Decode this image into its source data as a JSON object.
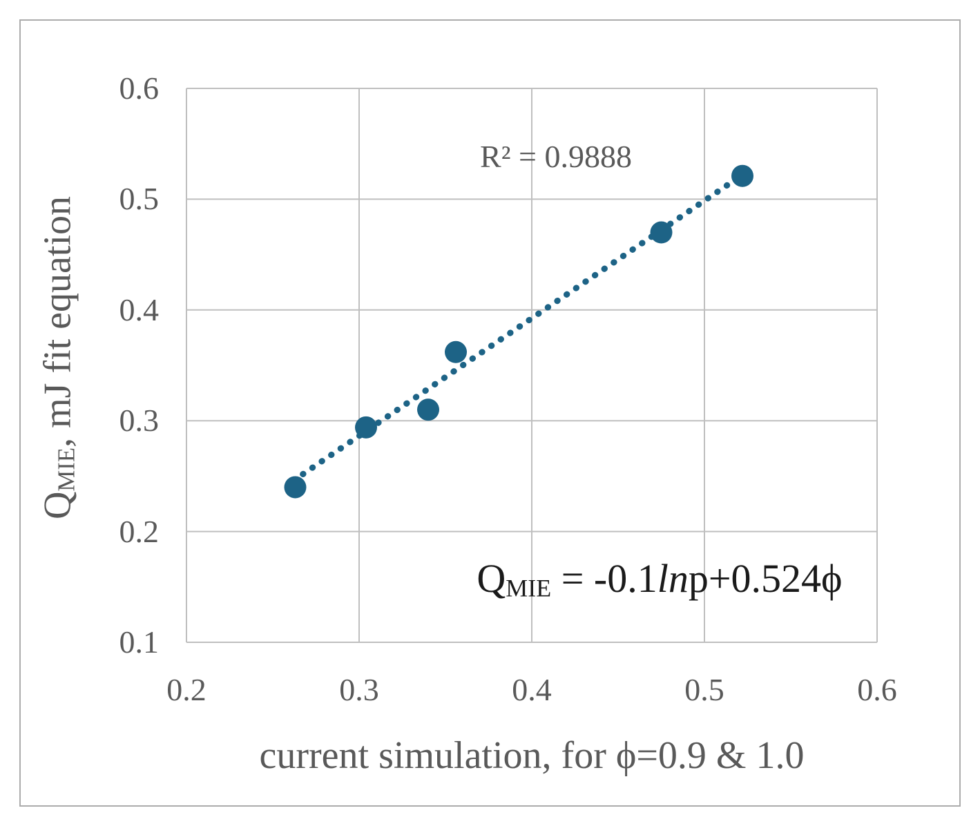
{
  "chart_data": {
    "type": "scatter",
    "title": "",
    "xlabel": "current simulation, for ϕ=0.9 & 1.0",
    "ylabel": "Q_MIE, mJ fit equation",
    "ylabel_parts": {
      "base": "Q",
      "sub": "MIE",
      "rest": ", mJ fit equation"
    },
    "r_squared_label": "R² = 0.9888",
    "equation_parts": {
      "base": "Q",
      "sub": "MIE",
      "mid": " = -0.1",
      "italic": "ln",
      "rest": "p+0.524ϕ"
    },
    "xlim": [
      0.2,
      0.6
    ],
    "ylim": [
      0.1,
      0.6
    ],
    "x_ticks": [
      0.2,
      0.3,
      0.4,
      0.5,
      0.6
    ],
    "y_ticks": [
      0.1,
      0.2,
      0.3,
      0.4,
      0.5,
      0.6
    ],
    "grid": true,
    "legend": "none",
    "points": [
      {
        "x": 0.263,
        "y": 0.24
      },
      {
        "x": 0.304,
        "y": 0.294
      },
      {
        "x": 0.34,
        "y": 0.31
      },
      {
        "x": 0.356,
        "y": 0.362
      },
      {
        "x": 0.475,
        "y": 0.47
      },
      {
        "x": 0.522,
        "y": 0.521
      }
    ],
    "trendline": {
      "style": "dotted",
      "x1": 0.262,
      "y1": 0.246,
      "x2": 0.522,
      "y2": 0.522
    },
    "colors": {
      "marker": "#1d6386",
      "trendline": "#1d6386",
      "grid": "#bfbfbf",
      "tick_text": "#595959",
      "axis_title_text": "#595959",
      "equation_text": "#1a1a1a",
      "border": "#ababab",
      "background": "#ffffff"
    }
  }
}
